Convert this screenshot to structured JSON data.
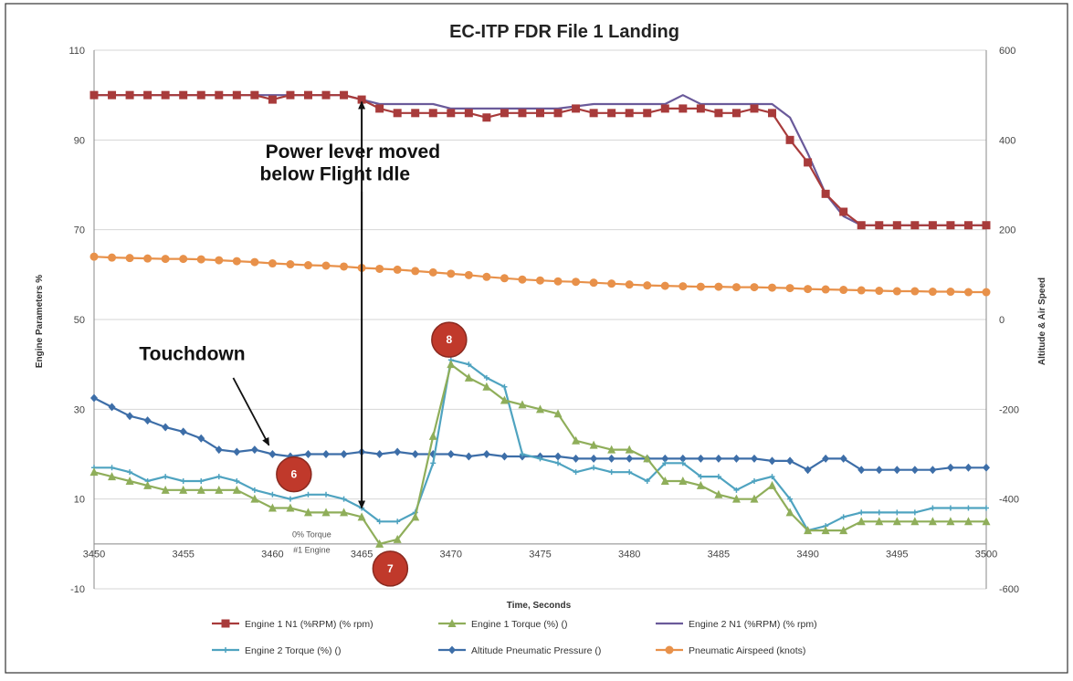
{
  "chart_data": {
    "type": "line",
    "title": "EC-ITP   FDR File 1  Landing",
    "xlabel": "Time, Seconds",
    "ylabel_left": "Engine Parameters %",
    "ylabel_right": "Altitude & Air Speed",
    "xlim": [
      3450,
      3500
    ],
    "ylim_left": [
      -10,
      110
    ],
    "ylim_right": [
      -600,
      600
    ],
    "x_ticks": [
      "3450",
      "3455",
      "3460",
      "3465",
      "3470",
      "3475",
      "3480",
      "3485",
      "3490",
      "3495",
      "3500"
    ],
    "y_left_ticks": [
      "110",
      "90",
      "70",
      "50",
      "30",
      "10",
      "-10"
    ],
    "y_right_ticks": [
      "600",
      "400",
      "200",
      "0",
      "-200",
      "-400",
      "-600"
    ],
    "grid": "horizontal",
    "legend_position": "bottom",
    "series": [
      {
        "name": "Engine 1 N1 (%RPM) (% rpm)",
        "axis": "left",
        "color": "#a83b3b",
        "marker": "square",
        "x": [
          3450,
          3451,
          3452,
          3453,
          3454,
          3455,
          3456,
          3457,
          3458,
          3459,
          3460,
          3461,
          3462,
          3463,
          3464,
          3465,
          3466,
          3467,
          3468,
          3469,
          3470,
          3471,
          3472,
          3473,
          3474,
          3475,
          3476,
          3477,
          3478,
          3479,
          3480,
          3481,
          3482,
          3483,
          3484,
          3485,
          3486,
          3487,
          3488,
          3489,
          3490,
          3491,
          3492,
          3493,
          3494,
          3495,
          3496,
          3497,
          3498,
          3499,
          3500
        ],
        "values": [
          100,
          100,
          100,
          100,
          100,
          100,
          100,
          100,
          100,
          100,
          99,
          100,
          100,
          100,
          100,
          99,
          97,
          96,
          96,
          96,
          96,
          96,
          95,
          96,
          96,
          96,
          96,
          97,
          96,
          96,
          96,
          96,
          97,
          97,
          97,
          96,
          96,
          97,
          96,
          90,
          85,
          78,
          74,
          71,
          71,
          71,
          71,
          71,
          71,
          71,
          71
        ]
      },
      {
        "name": "Engine 1 Torque (%) ()",
        "axis": "left",
        "color": "#8fae5a",
        "marker": "triangle",
        "x": [
          3450,
          3451,
          3452,
          3453,
          3454,
          3455,
          3456,
          3457,
          3458,
          3459,
          3460,
          3461,
          3462,
          3463,
          3464,
          3465,
          3466,
          3467,
          3468,
          3469,
          3470,
          3471,
          3472,
          3473,
          3474,
          3475,
          3476,
          3477,
          3478,
          3479,
          3480,
          3481,
          3482,
          3483,
          3484,
          3485,
          3486,
          3487,
          3488,
          3489,
          3490,
          3491,
          3492,
          3493,
          3494,
          3495,
          3496,
          3497,
          3498,
          3499,
          3500
        ],
        "values": [
          16,
          15,
          14,
          13,
          12,
          12,
          12,
          12,
          12,
          10,
          8,
          8,
          7,
          7,
          7,
          6,
          0,
          1,
          6,
          24,
          40,
          37,
          35,
          32,
          31,
          30,
          29,
          23,
          22,
          21,
          21,
          19,
          14,
          14,
          13,
          11,
          10,
          10,
          13,
          7,
          3,
          3,
          3,
          5,
          5,
          5,
          5,
          5,
          5,
          5,
          5
        ]
      },
      {
        "name": "Engine 2 N1 (%RPM) (% rpm)",
        "axis": "left",
        "color": "#6a5a9a",
        "marker": "none",
        "x": [
          3450,
          3452,
          3454,
          3456,
          3458,
          3460,
          3462,
          3464,
          3465,
          3466,
          3467,
          3468,
          3469,
          3470,
          3472,
          3474,
          3476,
          3478,
          3480,
          3482,
          3483,
          3484,
          3485,
          3486,
          3488,
          3489,
          3490,
          3491,
          3492,
          3493,
          3495,
          3497,
          3500
        ],
        "values": [
          100,
          100,
          100,
          100,
          100,
          100,
          100,
          100,
          99,
          98,
          98,
          98,
          98,
          97,
          97,
          97,
          97,
          98,
          98,
          98,
          100,
          98,
          98,
          98,
          98,
          95,
          87,
          78,
          73,
          71,
          71,
          71,
          71
        ]
      },
      {
        "name": "Engine 2 Torque (%) ()",
        "axis": "left",
        "color": "#4fa3c0",
        "marker": "plus",
        "x": [
          3450,
          3451,
          3452,
          3453,
          3454,
          3455,
          3456,
          3457,
          3458,
          3459,
          3460,
          3461,
          3462,
          3463,
          3464,
          3465,
          3466,
          3467,
          3468,
          3469,
          3470,
          3471,
          3472,
          3473,
          3474,
          3475,
          3476,
          3477,
          3478,
          3479,
          3480,
          3481,
          3482,
          3483,
          3484,
          3485,
          3486,
          3487,
          3488,
          3489,
          3490,
          3491,
          3492,
          3493,
          3494,
          3495,
          3496,
          3497,
          3498,
          3499,
          3500
        ],
        "values": [
          17,
          17,
          16,
          14,
          15,
          14,
          14,
          15,
          14,
          12,
          11,
          10,
          11,
          11,
          10,
          8,
          5,
          5,
          7,
          18,
          41,
          40,
          37,
          35,
          20,
          19,
          18,
          16,
          17,
          16,
          16,
          14,
          18,
          18,
          15,
          15,
          12,
          14,
          15,
          10,
          3,
          4,
          6,
          7,
          7,
          7,
          7,
          8,
          8,
          8,
          8
        ]
      },
      {
        "name": "Altitude Pneumatic Pressure ()",
        "axis": "right",
        "color": "#3d6ea8",
        "marker": "diamond",
        "x": [
          3450,
          3451,
          3452,
          3453,
          3454,
          3455,
          3456,
          3457,
          3458,
          3459,
          3460,
          3461,
          3462,
          3463,
          3464,
          3465,
          3466,
          3467,
          3468,
          3469,
          3470,
          3471,
          3472,
          3473,
          3474,
          3475,
          3476,
          3477,
          3478,
          3479,
          3480,
          3481,
          3482,
          3483,
          3484,
          3485,
          3486,
          3487,
          3488,
          3489,
          3490,
          3491,
          3492,
          3493,
          3494,
          3495,
          3496,
          3497,
          3498,
          3499,
          3500
        ],
        "values": [
          -175,
          -195,
          -215,
          -225,
          -240,
          -250,
          -265,
          -290,
          -295,
          -290,
          -300,
          -305,
          -300,
          -300,
          -300,
          -295,
          -300,
          -295,
          -300,
          -300,
          -300,
          -305,
          -300,
          -305,
          -305,
          -305,
          -305,
          -310,
          -310,
          -310,
          -310,
          -310,
          -310,
          -310,
          -310,
          -310,
          -310,
          -310,
          -315,
          -315,
          -335,
          -310,
          -310,
          -335,
          -335,
          -335,
          -335,
          -335,
          -330,
          -330,
          -330
        ]
      },
      {
        "name": "Pneumatic Airspeed (knots)",
        "axis": "right",
        "color": "#e8914a",
        "marker": "circle",
        "x": [
          3450,
          3451,
          3452,
          3453,
          3454,
          3455,
          3456,
          3457,
          3458,
          3459,
          3460,
          3461,
          3462,
          3463,
          3464,
          3465,
          3466,
          3467,
          3468,
          3469,
          3470,
          3471,
          3472,
          3473,
          3474,
          3475,
          3476,
          3477,
          3478,
          3479,
          3480,
          3481,
          3482,
          3483,
          3484,
          3485,
          3486,
          3487,
          3488,
          3489,
          3490,
          3491,
          3492,
          3493,
          3494,
          3495,
          3496,
          3497,
          3498,
          3499,
          3500
        ],
        "values": [
          140,
          138,
          137,
          136,
          135,
          135,
          134,
          132,
          130,
          128,
          125,
          123,
          121,
          120,
          118,
          115,
          113,
          111,
          108,
          105,
          102,
          99,
          95,
          92,
          89,
          87,
          85,
          84,
          82,
          80,
          78,
          76,
          75,
          74,
          73,
          73,
          72,
          72,
          71,
          70,
          68,
          67,
          66,
          65,
          64,
          63,
          63,
          62,
          62,
          61,
          61
        ]
      }
    ],
    "annotations": [
      {
        "text": "Power lever moved",
        "x": 3464.5,
        "y": 86
      },
      {
        "text": "below Flight Idle",
        "x": 3463.5,
        "y": 81
      },
      {
        "text": "Touchdown",
        "x": 3455.5,
        "y": 41
      },
      {
        "text": "0% Torque",
        "x": 3462.2,
        "y": 1.5
      },
      {
        "text": "#1 Engine",
        "x": 3462.2,
        "y": -2
      }
    ],
    "markers": [
      {
        "label": "6",
        "x": 3461.2,
        "y": 15.5
      },
      {
        "label": "8",
        "x": 3469.9,
        "y": 45.5
      },
      {
        "label": "7",
        "x": 3466.6,
        "y": -5.5
      }
    ]
  }
}
